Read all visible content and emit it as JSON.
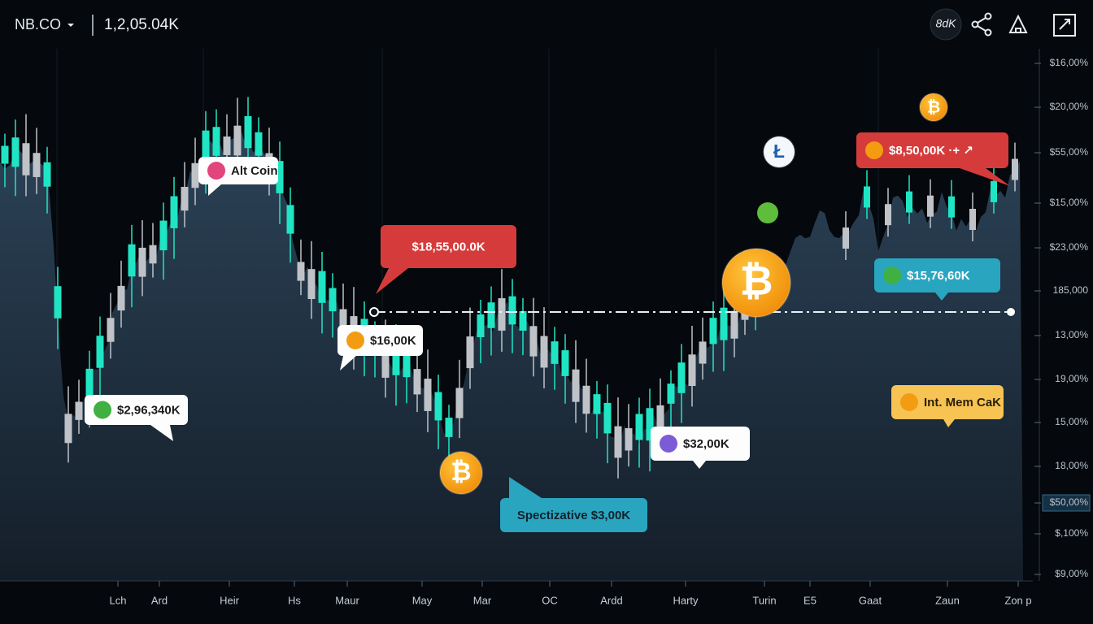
{
  "header": {
    "symbol": "NB.CO",
    "price": "1,2,05.04K",
    "badge": "8dK"
  },
  "y_axis": {
    "labels": [
      "$16,00%",
      "$20,00%",
      "$55,00%",
      "$15,00%",
      "$23,00%",
      "185,000",
      "13,00%",
      "19,00%",
      "15,00%",
      "18,00%",
      "$50,00%",
      "$,100%",
      "$9,00%"
    ]
  },
  "x_axis": {
    "labels": [
      "Lch",
      "Ard",
      "Heir",
      "Hs",
      "Maur",
      "May",
      "Mar",
      "OC",
      "Ardd",
      "Harty",
      "Turin",
      "E5",
      "Gaat",
      "Zaun",
      "Zon p"
    ]
  },
  "callouts": [
    {
      "text": "Alt Coin"
    },
    {
      "text": "$18,55,00.0K"
    },
    {
      "text": "$16,00K"
    },
    {
      "text": "$2,96,340K"
    },
    {
      "text": "Spectizative $3,00K"
    },
    {
      "text": "$32,00K"
    },
    {
      "text": "$8,50,00K ·+ ↗"
    },
    {
      "text": "$15,76,60K"
    },
    {
      "text": "Int. Mem CaK"
    }
  ],
  "coins": {
    "bitcoin": "₿",
    "litecoin": "Ł"
  }
}
